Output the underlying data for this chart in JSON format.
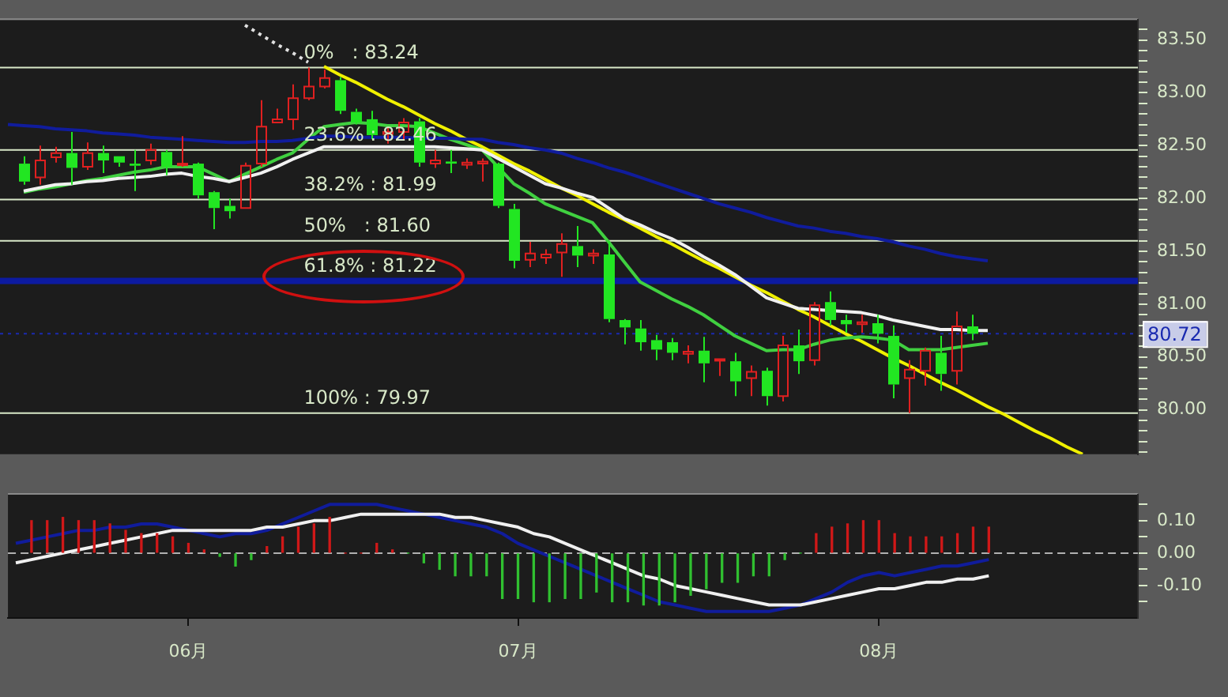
{
  "chart_data": [
    {
      "type": "candlestick",
      "categories": [
        null,
        null,
        null,
        null,
        null,
        null,
        null,
        null,
        null,
        null,
        null,
        null,
        null,
        null,
        null,
        null,
        null,
        null,
        null,
        null,
        null,
        null,
        null,
        null,
        null,
        null,
        null,
        null,
        null,
        null,
        null,
        null,
        null,
        null,
        null,
        null,
        null,
        null,
        null,
        null,
        null,
        null,
        null,
        null,
        null,
        null,
        null,
        null,
        null,
        null,
        null,
        null,
        null,
        null,
        null,
        null,
        null,
        null,
        null,
        null,
        null,
        null,
        null,
        null,
        null,
        null,
        null,
        null,
        null,
        null,
        null,
        null
      ],
      "ohlc": [
        null,
        [
          82.33,
          82.4,
          82.13,
          82.16
        ],
        [
          82.2,
          82.5,
          82.13,
          82.36
        ],
        [
          82.39,
          82.49,
          82.34,
          82.43
        ],
        [
          82.43,
          82.63,
          82.13,
          82.29
        ],
        [
          82.3,
          82.53,
          82.27,
          82.43
        ],
        [
          82.43,
          82.5,
          82.24,
          82.36
        ],
        [
          82.4,
          82.4,
          82.3,
          82.34
        ],
        [
          82.33,
          82.46,
          82.07,
          82.31
        ],
        [
          82.36,
          82.52,
          82.32,
          82.46
        ],
        [
          82.44,
          82.46,
          82.22,
          82.3
        ],
        [
          82.32,
          82.59,
          82.3,
          82.33
        ],
        [
          82.33,
          82.34,
          82.0,
          82.03
        ],
        [
          82.06,
          82.07,
          81.71,
          81.91
        ],
        [
          81.93,
          82.0,
          81.81,
          81.88
        ],
        [
          81.91,
          82.34,
          81.91,
          82.31
        ],
        [
          82.33,
          82.93,
          82.3,
          82.68
        ],
        [
          82.72,
          82.85,
          82.72,
          82.75
        ],
        [
          82.75,
          83.08,
          82.65,
          82.95
        ],
        [
          82.95,
          83.24,
          82.93,
          83.06
        ],
        [
          83.06,
          83.22,
          83.04,
          83.14
        ],
        [
          83.12,
          83.15,
          82.8,
          82.83
        ],
        [
          82.82,
          82.85,
          82.7,
          82.72
        ],
        [
          82.75,
          82.83,
          82.56,
          82.6
        ],
        [
          82.61,
          82.67,
          82.52,
          82.63
        ],
        [
          82.63,
          82.76,
          82.56,
          82.72
        ],
        [
          82.73,
          82.76,
          82.3,
          82.34
        ],
        [
          82.33,
          82.46,
          82.29,
          82.36
        ],
        [
          82.35,
          82.46,
          82.24,
          82.33
        ],
        [
          82.32,
          82.38,
          82.28,
          82.34
        ],
        [
          82.33,
          82.38,
          82.16,
          82.35
        ],
        [
          82.33,
          82.34,
          81.91,
          81.93
        ],
        [
          81.9,
          81.95,
          81.34,
          81.41
        ],
        [
          81.42,
          81.59,
          81.35,
          81.48
        ],
        [
          81.44,
          81.52,
          81.38,
          81.47
        ],
        [
          81.49,
          81.67,
          81.26,
          81.57
        ],
        [
          81.55,
          81.74,
          81.35,
          81.46
        ],
        [
          81.46,
          81.52,
          81.38,
          81.48
        ],
        [
          81.47,
          81.6,
          80.83,
          80.86
        ],
        [
          80.85,
          80.86,
          80.62,
          80.78
        ],
        [
          80.77,
          80.85,
          80.56,
          80.64
        ],
        [
          80.66,
          80.71,
          80.47,
          80.57
        ],
        [
          80.64,
          80.68,
          80.47,
          80.54
        ],
        [
          80.53,
          80.61,
          80.44,
          80.55
        ],
        [
          80.56,
          80.69,
          80.26,
          80.44
        ],
        [
          80.47,
          80.48,
          80.32,
          80.48
        ],
        [
          80.46,
          80.54,
          80.13,
          80.27
        ],
        [
          80.3,
          80.42,
          80.13,
          80.36
        ],
        [
          80.37,
          80.4,
          80.04,
          80.13
        ],
        [
          80.13,
          80.7,
          80.08,
          80.61
        ],
        [
          80.61,
          80.76,
          80.34,
          80.46
        ],
        [
          80.47,
          81.02,
          80.42,
          80.99
        ],
        [
          81.02,
          81.12,
          80.8,
          80.85
        ],
        [
          80.85,
          80.9,
          80.73,
          80.81
        ],
        [
          80.81,
          80.9,
          80.73,
          80.83
        ],
        [
          80.82,
          80.9,
          80.63,
          80.72
        ],
        [
          80.7,
          80.8,
          80.11,
          80.24
        ],
        [
          80.3,
          80.47,
          79.97,
          80.38
        ],
        [
          80.37,
          80.59,
          80.23,
          80.56
        ],
        [
          80.54,
          80.7,
          80.18,
          80.34
        ],
        [
          80.37,
          80.93,
          80.24,
          80.79
        ],
        [
          80.79,
          80.9,
          80.66,
          80.72
        ],
        null,
        null,
        null,
        null,
        null,
        null,
        null,
        null,
        null,
        null
      ],
      "colors": [
        null,
        "#22e622",
        "#e02020",
        "#e02020",
        "#22e622",
        "#e02020",
        "#22e622",
        "#22e622",
        "#22e622",
        "#e02020",
        "#22e622",
        "#e02020",
        "#22e622",
        "#22e622",
        "#22e622",
        "#e02020",
        "#e02020",
        "#e02020",
        "#e02020",
        "#e02020",
        "#e02020",
        "#22e622",
        "#22e622",
        "#22e622",
        "#e02020",
        "#e02020",
        "#22e622",
        "#e02020",
        "#22e622",
        "#e02020",
        "#e02020",
        "#22e622",
        "#22e622",
        "#e02020",
        "#e02020",
        "#e02020",
        "#22e622",
        "#e02020",
        "#22e622",
        "#22e622",
        "#22e622",
        "#22e622",
        "#22e622",
        "#e02020",
        "#22e622",
        "#e02020",
        "#22e622",
        "#e02020",
        "#22e622",
        "#e02020",
        "#22e622",
        "#e02020",
        "#22e622",
        "#22e622",
        "#e02020",
        "#22e622",
        "#22e622",
        "#e02020",
        "#e02020",
        "#22e622",
        "#e02020",
        "#22e622",
        null,
        null,
        null,
        null,
        null,
        null,
        null,
        null,
        null,
        null
      ],
      "series": [
        {
          "type": "line",
          "color": "#101c9c",
          "values": [
            82.7,
            82.69,
            82.68,
            82.66,
            82.65,
            82.64,
            82.62,
            82.61,
            82.6,
            82.58,
            82.57,
            82.56,
            82.55,
            82.54,
            82.53,
            82.53,
            82.54,
            82.54,
            82.55,
            82.57,
            82.59,
            82.59,
            82.58,
            82.58,
            82.58,
            82.58,
            82.57,
            82.57,
            82.57,
            82.56,
            82.56,
            82.53,
            82.51,
            82.48,
            82.46,
            82.43,
            82.38,
            82.34,
            82.29,
            82.25,
            82.2,
            82.15,
            82.1,
            82.05,
            82.0,
            81.95,
            81.91,
            81.87,
            81.82,
            81.78,
            81.74,
            81.72,
            81.69,
            81.67,
            81.64,
            81.62,
            81.59,
            81.55,
            81.52,
            81.48,
            81.45,
            81.43,
            81.41,
            null,
            null,
            null,
            null,
            null,
            null,
            null,
            null,
            null
          ]
        },
        {
          "type": "line",
          "color": "#f0f0f0",
          "values": [
            null,
            82.07,
            82.1,
            82.13,
            82.14,
            82.16,
            82.17,
            82.19,
            82.2,
            82.21,
            82.23,
            82.24,
            82.21,
            82.19,
            82.16,
            82.2,
            82.24,
            82.3,
            82.37,
            82.43,
            82.49,
            82.49,
            82.49,
            82.49,
            82.49,
            82.49,
            82.49,
            82.49,
            82.48,
            82.47,
            82.46,
            82.38,
            82.3,
            82.22,
            82.14,
            82.1,
            82.05,
            82.01,
            81.91,
            81.81,
            81.75,
            81.68,
            81.62,
            81.54,
            81.45,
            81.37,
            81.28,
            81.17,
            81.06,
            81.01,
            80.96,
            80.95,
            80.94,
            80.93,
            80.92,
            80.89,
            80.85,
            80.82,
            80.79,
            80.76,
            80.76,
            80.75,
            80.75,
            null,
            null,
            null,
            null,
            null,
            null,
            null,
            null,
            null
          ]
        },
        {
          "type": "line",
          "color": "#40d040",
          "values": [
            null,
            82.06,
            82.09,
            82.11,
            82.14,
            82.17,
            82.19,
            82.22,
            82.25,
            82.27,
            82.3,
            82.3,
            82.3,
            82.23,
            82.16,
            82.23,
            82.3,
            82.37,
            82.43,
            82.56,
            82.68,
            82.7,
            82.72,
            82.71,
            82.69,
            82.69,
            82.68,
            82.62,
            82.56,
            82.51,
            82.46,
            82.3,
            82.14,
            82.05,
            81.95,
            81.89,
            81.83,
            81.77,
            81.59,
            81.4,
            81.21,
            81.13,
            81.05,
            80.98,
            80.9,
            80.8,
            80.7,
            80.63,
            80.56,
            80.57,
            80.57,
            80.62,
            80.66,
            80.68,
            80.69,
            80.68,
            80.66,
            80.57,
            80.57,
            80.57,
            80.59,
            80.61,
            80.63,
            null,
            null,
            null,
            null,
            null,
            null,
            null,
            null,
            null
          ]
        },
        {
          "type": "line",
          "color": "#f0f000",
          "values": [
            null,
            null,
            null,
            null,
            null,
            null,
            null,
            null,
            null,
            null,
            null,
            null,
            null,
            null,
            null,
            null,
            null,
            null,
            null,
            null,
            83.25,
            83.17,
            83.1,
            83.02,
            82.94,
            82.87,
            82.79,
            82.71,
            82.64,
            82.56,
            82.49,
            82.41,
            82.33,
            82.26,
            82.18,
            82.1,
            82.03,
            81.95,
            81.87,
            81.8,
            81.72,
            81.64,
            81.57,
            81.49,
            81.41,
            81.34,
            81.26,
            81.18,
            81.11,
            81.03,
            80.95,
            80.88,
            80.8,
            80.72,
            80.65,
            80.57,
            80.49,
            80.42,
            80.34,
            80.26,
            80.19,
            80.11,
            80.03,
            79.96,
            79.88,
            79.8,
            79.73,
            79.65,
            79.58,
            null,
            null,
            null
          ]
        },
        {
          "type": "line",
          "color": "#e0e0e0",
          "line_style": "dotted",
          "values": [
            null,
            null,
            null,
            null,
            null,
            null,
            null,
            null,
            null,
            null,
            null,
            null,
            null,
            null,
            null,
            83.64,
            83.55,
            83.46,
            83.38,
            83.29,
            null,
            null,
            null,
            null,
            null,
            null,
            null,
            null,
            null,
            null,
            null,
            null,
            null,
            null,
            null,
            null,
            null,
            null,
            null,
            null,
            null,
            null,
            null,
            null,
            null,
            null,
            null,
            null,
            null,
            null,
            null,
            null,
            null,
            null,
            null,
            null,
            null,
            null,
            null,
            null,
            null,
            null,
            null,
            null,
            null,
            null,
            null,
            null,
            null,
            null,
            null,
            null
          ]
        }
      ],
      "tick_labels": "y",
      "ylim": [
        79.58,
        83.69
      ],
      "yticks": [
        {
          "value": 79.6,
          "label": null
        },
        {
          "value": 79.7,
          "label": null
        },
        {
          "value": 79.8,
          "label": null
        },
        {
          "value": 79.9,
          "label": null
        },
        {
          "value": 80,
          "label": "80.00"
        },
        {
          "value": 80.1,
          "label": null
        },
        {
          "value": 80.2,
          "label": null
        },
        {
          "value": 80.3,
          "label": null
        },
        {
          "value": 80.4,
          "label": null
        },
        {
          "value": 80.5,
          "label": "80.50"
        },
        {
          "value": 80.6,
          "label": null
        },
        {
          "value": 80.7,
          "label": null
        },
        {
          "value": 80.8,
          "label": null
        },
        {
          "value": 80.9,
          "label": null
        },
        {
          "value": 81,
          "label": "81.00"
        },
        {
          "value": 81.1,
          "label": null
        },
        {
          "value": 81.2,
          "label": null
        },
        {
          "value": 81.3,
          "label": null
        },
        {
          "value": 81.4,
          "label": null
        },
        {
          "value": 81.5,
          "label": "81.50"
        },
        {
          "value": 81.6,
          "label": null
        },
        {
          "value": 81.7,
          "label": null
        },
        {
          "value": 81.8,
          "label": null
        },
        {
          "value": 81.9,
          "label": null
        },
        {
          "value": 82,
          "label": "82.00"
        },
        {
          "value": 82.1,
          "label": null
        },
        {
          "value": 82.2,
          "label": null
        },
        {
          "value": 82.3,
          "label": null
        },
        {
          "value": 82.4,
          "label": null
        },
        {
          "value": 82.5,
          "label": "82.50"
        },
        {
          "value": 82.6,
          "label": null
        },
        {
          "value": 82.7,
          "label": null
        },
        {
          "value": 82.8,
          "label": null
        },
        {
          "value": 82.9,
          "label": null
        },
        {
          "value": 83,
          "label": "83.00"
        },
        {
          "value": 83.1,
          "label": null
        },
        {
          "value": 83.2,
          "label": null
        },
        {
          "value": 83.3,
          "label": null
        },
        {
          "value": 83.4,
          "label": null
        },
        {
          "value": 83.5,
          "label": "83.50"
        },
        {
          "value": 83.6,
          "label": null
        }
      ],
      "ref_lines": [
        {
          "axis": "y",
          "value": 83.24,
          "label": "0%   : 83.24",
          "color": "#d8e8c8"
        },
        {
          "axis": "y",
          "value": 82.46,
          "label": "23.6% : 82.46",
          "color": "#d8e8c8"
        },
        {
          "axis": "y",
          "value": 81.99,
          "label": "38.2% : 81.99",
          "color": "#d8e8c8"
        },
        {
          "axis": "y",
          "value": 81.6,
          "label": "50%   : 81.60",
          "color": "#d8e8c8"
        },
        {
          "axis": "y",
          "value": 81.22,
          "label": "61.8% : 81.22",
          "color": "#0c1aa0"
        },
        {
          "axis": "y",
          "value": 79.97,
          "label": "100% : 79.97",
          "color": "#d8e8c8"
        },
        {
          "axis": "y",
          "value": 80.72,
          "label": "80.72",
          "color": "#1a2ab0",
          "line_style": "dotted"
        }
      ]
    },
    {
      "type": "bar",
      "categories": [
        null,
        null,
        null,
        null,
        null,
        null,
        null,
        null,
        null,
        null,
        null,
        "06月",
        null,
        null,
        null,
        null,
        null,
        null,
        null,
        null,
        null,
        null,
        null,
        null,
        null,
        null,
        null,
        null,
        null,
        null,
        null,
        null,
        "07月",
        null,
        null,
        null,
        null,
        null,
        null,
        null,
        null,
        null,
        null,
        null,
        null,
        null,
        null,
        null,
        null,
        null,
        null,
        null,
        null,
        null,
        null,
        "08月",
        null,
        null,
        null,
        null,
        null,
        null,
        null,
        null,
        null,
        null,
        null,
        null,
        null,
        null,
        null,
        null
      ],
      "series": [
        {
          "type": "bar",
          "values": [
            null,
            0.1,
            0.1,
            0.11,
            0.1,
            0.1,
            0.09,
            0.07,
            0.06,
            0.06,
            0.05,
            0.03,
            0.01,
            -0.01,
            -0.04,
            -0.02,
            0.02,
            0.05,
            0.08,
            0.09,
            0.11,
            0.0,
            0.0,
            0.03,
            0.01,
            0.0,
            -0.03,
            -0.05,
            -0.07,
            -0.07,
            -0.07,
            -0.14,
            -0.14,
            -0.15,
            -0.15,
            -0.14,
            -0.14,
            -0.12,
            -0.15,
            -0.15,
            -0.16,
            -0.16,
            -0.15,
            -0.13,
            -0.11,
            -0.09,
            -0.09,
            -0.07,
            -0.07,
            -0.02,
            0.0,
            0.06,
            0.08,
            0.09,
            0.1,
            0.1,
            0.06,
            0.05,
            0.05,
            0.05,
            0.06,
            0.08,
            0.08,
            null,
            null,
            null,
            null,
            null,
            null,
            null,
            null,
            null
          ],
          "colors": [
            null,
            "#d01818",
            "#d01818",
            "#d01818",
            "#d01818",
            "#d01818",
            "#d01818",
            "#d01818",
            "#d01818",
            "#d01818",
            "#d01818",
            "#d01818",
            "#d01818",
            "#30c030",
            "#30c030",
            "#30c030",
            "#d01818",
            "#d01818",
            "#d01818",
            "#d01818",
            "#d01818",
            "#d01818",
            "#d01818",
            "#d01818",
            "#d01818",
            "#30c030",
            "#30c030",
            "#30c030",
            "#30c030",
            "#30c030",
            "#30c030",
            "#30c030",
            "#30c030",
            "#30c030",
            "#30c030",
            "#30c030",
            "#30c030",
            "#30c030",
            "#30c030",
            "#30c030",
            "#30c030",
            "#30c030",
            "#30c030",
            "#30c030",
            "#30c030",
            "#30c030",
            "#30c030",
            "#30c030",
            "#30c030",
            "#30c030",
            "#30c030",
            "#d01818",
            "#d01818",
            "#d01818",
            "#d01818",
            "#d01818",
            "#d01818",
            "#d01818",
            "#d01818",
            "#d01818",
            "#d01818",
            "#d01818",
            "#d01818",
            null,
            null,
            null,
            null,
            null,
            null,
            null,
            null,
            null
          ]
        },
        {
          "type": "line",
          "color": "#f0f0f0",
          "values": [
            -0.03,
            -0.02,
            -0.01,
            0.0,
            0.01,
            0.02,
            0.03,
            0.04,
            0.05,
            0.06,
            0.07,
            0.07,
            0.07,
            0.07,
            0.07,
            0.07,
            0.08,
            0.08,
            0.09,
            0.1,
            0.1,
            0.11,
            0.12,
            0.12,
            0.12,
            0.12,
            0.12,
            0.12,
            0.11,
            0.11,
            0.1,
            0.09,
            0.08,
            0.06,
            0.05,
            0.03,
            0.01,
            -0.01,
            -0.03,
            -0.05,
            -0.07,
            -0.08,
            -0.1,
            -0.11,
            -0.12,
            -0.13,
            -0.14,
            -0.15,
            -0.16,
            -0.16,
            -0.16,
            -0.15,
            -0.14,
            -0.13,
            -0.12,
            -0.11,
            -0.11,
            -0.1,
            -0.09,
            -0.09,
            -0.08,
            -0.08,
            -0.07,
            null,
            null,
            null,
            null,
            null,
            null,
            null,
            null,
            null
          ]
        },
        {
          "type": "line",
          "color": "#101c9c",
          "values": [
            0.03,
            0.04,
            0.05,
            0.06,
            0.07,
            0.07,
            0.08,
            0.08,
            0.09,
            0.09,
            0.08,
            0.07,
            0.06,
            0.05,
            0.06,
            0.06,
            0.07,
            0.09,
            0.11,
            0.13,
            0.15,
            0.15,
            0.15,
            0.15,
            0.14,
            0.13,
            0.12,
            0.11,
            0.1,
            0.09,
            0.08,
            0.06,
            0.03,
            0.01,
            -0.01,
            -0.03,
            -0.05,
            -0.07,
            -0.09,
            -0.11,
            -0.13,
            -0.15,
            -0.16,
            -0.17,
            -0.18,
            -0.18,
            -0.18,
            -0.18,
            -0.18,
            -0.17,
            -0.16,
            -0.14,
            -0.12,
            -0.09,
            -0.07,
            -0.06,
            -0.07,
            -0.06,
            -0.05,
            -0.04,
            -0.04,
            -0.03,
            -0.02,
            null,
            null,
            null,
            null,
            null,
            null,
            null,
            null,
            null
          ]
        }
      ],
      "ylim": [
        -0.2,
        0.18
      ],
      "yticks": [
        {
          "value": -0.15,
          "label": null
        },
        {
          "value": -0.1,
          "label": "-0.10"
        },
        {
          "value": -0.05,
          "label": null
        },
        {
          "value": 0,
          "label": "0.00"
        },
        {
          "value": 0.05,
          "label": null
        },
        {
          "value": 0.1,
          "label": "0.10"
        },
        {
          "value": 0.15,
          "label": null
        }
      ],
      "ref_lines": [
        {
          "axis": "y",
          "value": 0,
          "color": "#b0b0b0",
          "line_style": "dashed"
        }
      ]
    }
  ]
}
